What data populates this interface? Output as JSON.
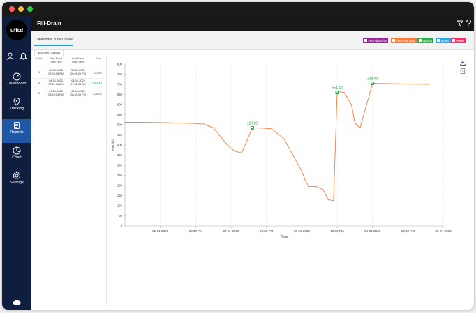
{
  "window": {
    "dots": [
      "#ff5f57",
      "#febc2e",
      "#28c840"
    ]
  },
  "logo": "ufftzi",
  "sidebar": {
    "items": [
      {
        "label": "Dashboard",
        "icon": "speedometer-icon"
      },
      {
        "label": "Tracking",
        "icon": "location-pin-icon"
      },
      {
        "label": "Reports",
        "icon": "report-icon",
        "active": true
      },
      {
        "label": "Chart",
        "icon": "pie-chart-icon"
      },
      {
        "label": "Settings",
        "icon": "gear-icon"
      }
    ]
  },
  "header": {
    "title": "Fill-Drain"
  },
  "asset_tab": "Dalesinder 20663 Trailer",
  "legend": [
    {
      "label": "Fuel Algorithm",
      "color": "#8e2a8e"
    },
    {
      "label": "Fuel Raw Data",
      "color": "#f07e3c"
    },
    {
      "label": "Ignition",
      "color": "#2fa84f"
    },
    {
      "label": "Speed",
      "color": "#29a6e0"
    },
    {
      "label": "Power",
      "color": "#e8336d"
    }
  ],
  "sub_tab": "BLE Fuel Level #1",
  "events": {
    "columns": [
      "Sr. No.",
      "Start Event Date/Time",
      "End Event Date/Time",
      "Fuel"
    ],
    "rows": [
      {
        "sr": "1",
        "start": "02-01-2023 09:05:05 PM",
        "end": "02-01-2023 09:45:05 PM",
        "fuel": "120.80"
      },
      {
        "sr": "2",
        "start": "04-01-2023 07:21:38 AM",
        "end": "04-01-2023 07:35:38 AM",
        "fuel": "554.40"
      },
      {
        "sr": "3",
        "start": "04-01-2023 08:29:04 PM",
        "end": "04-01-2023 08:40:05 PM",
        "fuel": "228.00"
      }
    ]
  },
  "chart_data": {
    "type": "line",
    "xlabel": "Time",
    "ylabel": "Fuel (ltr)",
    "ylim": [
      0,
      800
    ],
    "yticks": [
      0,
      50,
      100,
      150,
      200,
      250,
      300,
      350,
      400,
      450,
      500,
      550,
      600,
      650,
      700,
      750,
      800
    ],
    "x_tick_labels": [
      "01-01-2023",
      "10:30 PM",
      "02-01-2023",
      "10:30 PM",
      "03-01-2023",
      "10:30 PM",
      "04-01-2023",
      "10:30 PM",
      "05-01-2023"
    ],
    "grid": "vertical",
    "series": [
      {
        "color": "#f07e3c",
        "x": [
          0,
          0.5,
          1.2,
          1.9,
          2.05,
          2.15,
          2.25,
          2.28,
          2.3,
          2.5,
          2.9,
          3.1,
          3.3,
          3.6,
          3.9,
          4.15,
          4.5,
          5.0,
          5.1,
          5.18,
          5.2,
          5.25,
          5.4,
          5.6,
          5.75,
          5.9,
          6.0,
          6.05,
          6.1,
          6.2,
          6.4,
          6.45,
          6.5,
          6.55,
          6.65,
          7.0,
          8.0,
          8.6
        ],
        "y": [
          512,
          512,
          510,
          507,
          505,
          503,
          505,
          500,
          498,
          485,
          400,
          370,
          360,
          485,
          483,
          480,
          430,
          270,
          225,
          200,
          195,
          195,
          195,
          180,
          130,
          125,
          660,
          665,
          662,
          660,
          600,
          560,
          510,
          500,
          485,
          705,
          702,
          700
        ]
      }
    ],
    "annotations": [
      {
        "label": "120.80",
        "x": 3.6,
        "y": 485,
        "color": "#2fa84f"
      },
      {
        "label": "554.40",
        "x": 6.0,
        "y": 660,
        "color": "#2fa84f"
      },
      {
        "label": "228.00",
        "x": 7.0,
        "y": 705,
        "color": "#2fa84f"
      }
    ]
  }
}
